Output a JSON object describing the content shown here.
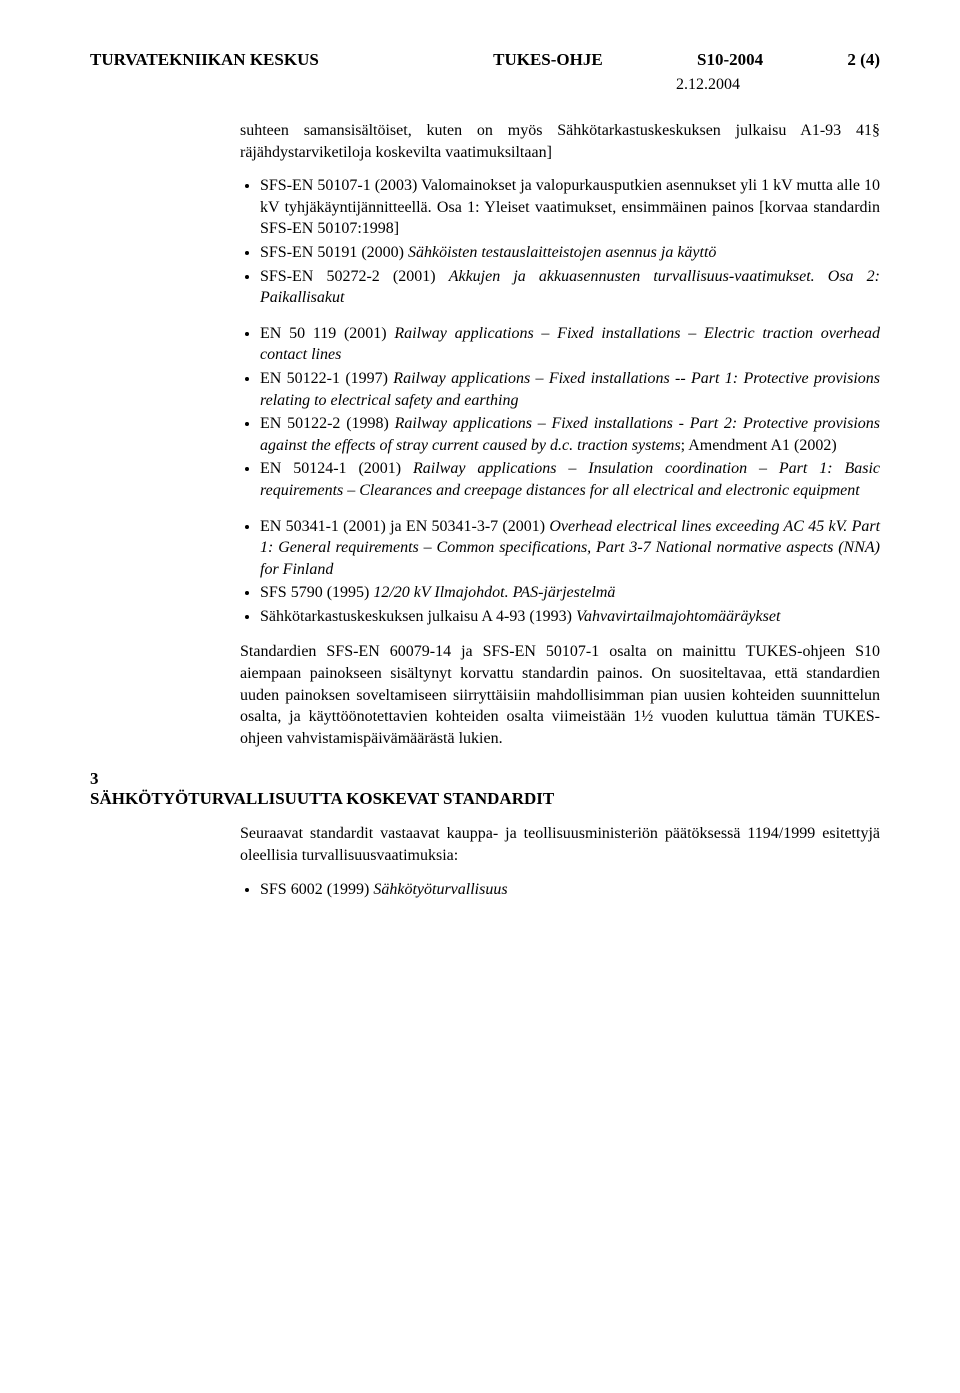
{
  "header": {
    "left": "TURVATEKNIIKAN KESKUS",
    "center": "TUKES-OHJE",
    "right": "S10-2004",
    "page": "2 (4)",
    "date": "2.12.2004"
  },
  "intro": "suhteen samansisältöiset, kuten on myös Sähkötarkastuskeskuksen julkaisu A1-93 41§ räjähdystarviketiloja koskevilta vaatimuksiltaan]",
  "list1": [
    {
      "plain": "SFS-EN 50107-1 (2003) Valomainokset ja valopurkausputkien asennukset yli 1 kV mutta alle 10 kV tyhjäkäyntijännitteellä. Osa 1: Yleiset vaatimukset, ensimmäinen painos [korvaa standardin SFS-EN 50107:1998]"
    },
    {
      "plain": "SFS-EN 50191 (2000) ",
      "italic": "Sähköisten testauslaitteistojen asennus ja käyttö"
    },
    {
      "plain": "SFS-EN 50272-2 (2001) ",
      "italic": "Akkujen ja akkuasennusten turvallisuus-vaatimukset. Osa 2: Paikallisakut"
    }
  ],
  "list2": [
    {
      "plain": "EN 50 119 (2001) ",
      "italic": "Railway applications – Fixed installations – Electric traction overhead contact lines"
    },
    {
      "plain": "EN 50122-1 (1997) ",
      "italic": "Railway applications – Fixed installations -- Part 1: Protective provisions relating to electrical safety and earthing"
    },
    {
      "plain": "EN 50122-2 (1998) ",
      "italic": "Railway applications – Fixed installations - Part 2: Protective provisions against the effects of stray current caused by d.c. traction systems",
      "tail": "; Amendment A1 (2002)"
    },
    {
      "plain": "EN 50124-1 (2001) ",
      "italic": "Railway applications – Insulation coordination – Part 1: Basic requirements – Clearances and creepage distances for all electrical and electronic equipment"
    }
  ],
  "list3": [
    {
      "plain": "EN 50341-1 (2001) ja EN 50341-3-7 (2001) ",
      "italic": "Overhead electrical lines exceeding AC 45 kV. Part 1: General requirements – Common specifications, Part 3-7 National normative aspects (NNA) for Finland"
    },
    {
      "plain": "SFS 5790 (1995) ",
      "italic": "12/20 kV Ilmajohdot. PAS-järjestelmä"
    },
    {
      "plain": "Sähkötarkastuskeskuksen julkaisu A 4-93 (1993) ",
      "italic": "Vahvavirtailmajohtomääräykset"
    }
  ],
  "para2": "Standardien SFS-EN 60079-14 ja SFS-EN 50107-1 osalta on mainittu TUKES-ohjeen S10 aiempaan painokseen sisältynyt korvattu standardin painos. On suositeltavaa, että standardien uuden painoksen soveltamiseen siirryttäisiin mahdollisimman pian uusien kohteiden suunnittelun osalta, ja käyttöönotettavien kohteiden osalta viimeistään 1½ vuoden kuluttua tämän TUKES-ohjeen vahvistamispäivämäärästä lukien.",
  "section": {
    "num": "3",
    "title": "SÄHKÖTYÖTURVALLISUUTTA KOSKEVAT STANDARDIT",
    "intro": "Seuraavat standardit vastaavat kauppa- ja teollisuusministeriön päätöksessä 1194/1999 esitettyjä oleellisia turvallisuusvaatimuksia:",
    "items": [
      {
        "plain": "SFS 6002 (1999) ",
        "italic": "Sähkötyöturvallisuus"
      }
    ]
  }
}
